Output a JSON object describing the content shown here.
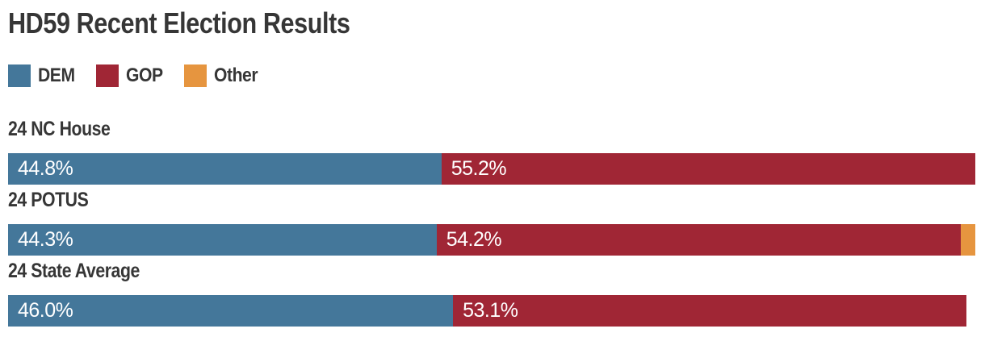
{
  "title": "HD59 Recent Election Results",
  "colors": {
    "background": "#ffffff",
    "text": "#363636",
    "bar_label": "#ffffff",
    "dem": "#44779A",
    "gop": "#A02635",
    "other": "#E6953F"
  },
  "legend": {
    "items": [
      {
        "label": "DEM"
      },
      {
        "label": "GOP"
      },
      {
        "label": "Other"
      }
    ]
  },
  "chart_data": {
    "type": "bar",
    "orientation": "horizontal",
    "stacked": true,
    "title": "HD59 Recent Election Results",
    "unit": "percent",
    "xlim": [
      0,
      100
    ],
    "grid": false,
    "legend_position": "top-left",
    "categories": [
      "24 NC House",
      "24 POTUS",
      "24 State Average"
    ],
    "series": [
      {
        "name": "DEM",
        "color": "#44779A",
        "values": [
          44.8,
          44.3,
          46.0
        ],
        "labels": [
          "44.8%",
          "44.3%",
          "46.0%"
        ]
      },
      {
        "name": "GOP",
        "color": "#A02635",
        "values": [
          55.2,
          54.2,
          53.1
        ],
        "labels": [
          "55.2%",
          "54.2%",
          "53.1%"
        ]
      },
      {
        "name": "Other",
        "color": "#E6953F",
        "values": [
          null,
          1.5,
          null
        ],
        "labels": [
          "",
          "",
          ""
        ]
      }
    ]
  }
}
